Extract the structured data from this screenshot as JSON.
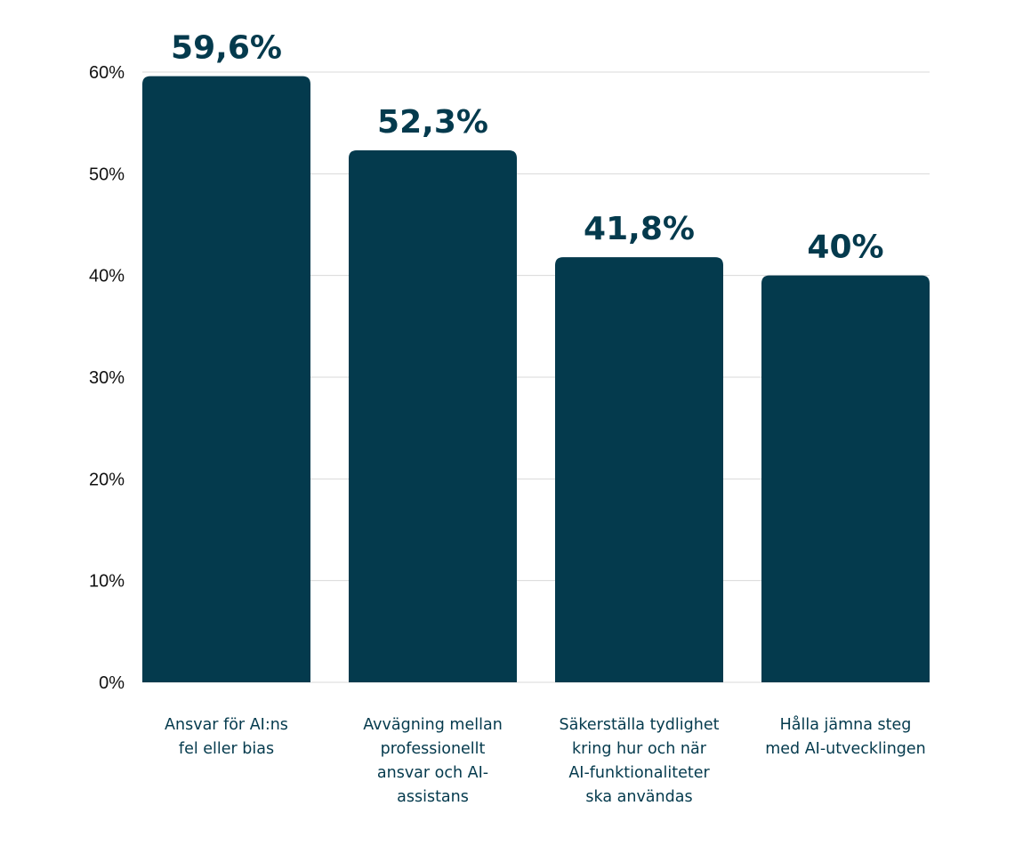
{
  "chart_data": {
    "type": "bar",
    "categories": [
      "Ansvar för AI:ns fel eller bias",
      "Avvägning mellan professionellt ansvar och AI-assistans",
      "Säkerställa tydlighet kring hur och när AI-funktionaliteter ska användas",
      "Hålla jämna steg med AI-utvecklingen"
    ],
    "category_label_lines": [
      [
        "Ansvar för AI:ns",
        "fel eller bias"
      ],
      [
        "Avvägning mellan",
        "professionellt",
        "ansvar och AI-",
        "assistans"
      ],
      [
        "Säkerställa tydlighet",
        "kring hur och när",
        "AI-funktionaliteter",
        "ska användas"
      ],
      [
        "Hålla jämna steg",
        "med AI-utvecklingen"
      ]
    ],
    "values": [
      59.6,
      52.3,
      41.8,
      40
    ],
    "data_labels": [
      "59,6%",
      "52,3%",
      "41,8%",
      "40%"
    ],
    "title": "",
    "xlabel": "",
    "ylabel": "",
    "ylim": [
      0,
      60
    ],
    "y_ticks": [
      0,
      10,
      20,
      30,
      40,
      50,
      60
    ],
    "y_tick_labels": [
      "0%",
      "10%",
      "20%",
      "30%",
      "40%",
      "50%",
      "60%"
    ],
    "grid": true,
    "legend": "none",
    "colors": {
      "bar": "#043a4d",
      "grid": "#d9d9d9",
      "axis_text": "#111111",
      "label_text": "#043a4d"
    }
  }
}
